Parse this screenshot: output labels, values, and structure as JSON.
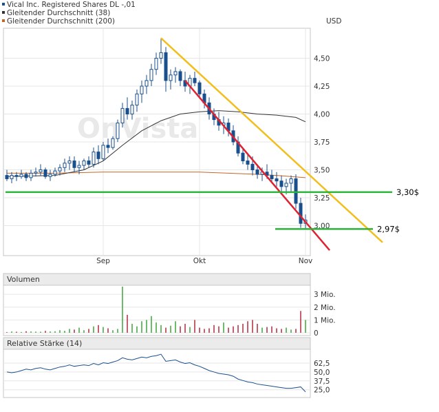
{
  "chart_data": {
    "type": "candlestick",
    "legend": [
      {
        "label": "Vical Inc. Registered Shares DL -,01",
        "color": "#1a4f8e"
      },
      {
        "label": "Gleitender Durchschnitt (38)",
        "color": "#333333"
      },
      {
        "label": "Gleitender Durchschnitt (200)",
        "color": "#c86420"
      }
    ],
    "currency": "USD",
    "watermark": "OnVista",
    "price_ticks": [
      "4,50",
      "4,25",
      "4,00",
      "3,75",
      "3,50",
      "3,25",
      "3,00"
    ],
    "price_tick_values": [
      4.5,
      4.25,
      4.0,
      3.75,
      3.5,
      3.25,
      3.0
    ],
    "ylim": [
      2.75,
      4.75
    ],
    "x_labels": [
      {
        "label": "Sep",
        "day": 20
      },
      {
        "label": "Okt",
        "day": 40
      },
      {
        "label": "Nov",
        "day": 62
      }
    ],
    "candles": [
      [
        3.45,
        3.5,
        3.4,
        3.42
      ],
      [
        3.42,
        3.48,
        3.38,
        3.45
      ],
      [
        3.45,
        3.48,
        3.4,
        3.44
      ],
      [
        3.44,
        3.5,
        3.42,
        3.46
      ],
      [
        3.46,
        3.48,
        3.4,
        3.43
      ],
      [
        3.43,
        3.5,
        3.4,
        3.47
      ],
      [
        3.47,
        3.52,
        3.44,
        3.48
      ],
      [
        3.48,
        3.55,
        3.45,
        3.5
      ],
      [
        3.5,
        3.52,
        3.42,
        3.44
      ],
      [
        3.44,
        3.5,
        3.4,
        3.46
      ],
      [
        3.46,
        3.52,
        3.44,
        3.49
      ],
      [
        3.49,
        3.55,
        3.45,
        3.52
      ],
      [
        3.52,
        3.6,
        3.48,
        3.56
      ],
      [
        3.56,
        3.62,
        3.5,
        3.58
      ],
      [
        3.58,
        3.62,
        3.48,
        3.52
      ],
      [
        3.52,
        3.58,
        3.46,
        3.54
      ],
      [
        3.54,
        3.6,
        3.5,
        3.58
      ],
      [
        3.58,
        3.62,
        3.52,
        3.55
      ],
      [
        3.55,
        3.7,
        3.52,
        3.66
      ],
      [
        3.66,
        3.72,
        3.55,
        3.6
      ],
      [
        3.6,
        3.75,
        3.58,
        3.72
      ],
      [
        3.72,
        3.78,
        3.65,
        3.7
      ],
      [
        3.7,
        3.8,
        3.68,
        3.78
      ],
      [
        3.78,
        3.95,
        3.75,
        3.92
      ],
      [
        3.92,
        4.1,
        3.88,
        4.05
      ],
      [
        4.05,
        4.15,
        3.95,
        4.0
      ],
      [
        4.0,
        4.12,
        3.95,
        4.08
      ],
      [
        4.08,
        4.22,
        4.02,
        4.18
      ],
      [
        4.18,
        4.3,
        4.1,
        4.25
      ],
      [
        4.25,
        4.35,
        4.18,
        4.3
      ],
      [
        4.3,
        4.45,
        4.25,
        4.4
      ],
      [
        4.4,
        4.55,
        4.35,
        4.5
      ],
      [
        4.5,
        4.68,
        4.45,
        4.55
      ],
      [
        4.55,
        4.6,
        4.2,
        4.3
      ],
      [
        4.3,
        4.4,
        4.22,
        4.35
      ],
      [
        4.35,
        4.42,
        4.28,
        4.38
      ],
      [
        4.38,
        4.4,
        4.25,
        4.3
      ],
      [
        4.3,
        4.38,
        4.2,
        4.25
      ],
      [
        4.25,
        4.35,
        4.18,
        4.32
      ],
      [
        4.32,
        4.38,
        4.25,
        4.28
      ],
      [
        4.28,
        4.3,
        4.15,
        4.18
      ],
      [
        4.18,
        4.22,
        4.05,
        4.1
      ],
      [
        4.1,
        4.15,
        3.95,
        4.0
      ],
      [
        4.0,
        4.05,
        3.9,
        3.95
      ],
      [
        3.95,
        4.02,
        3.85,
        3.9
      ],
      [
        3.9,
        3.98,
        3.82,
        3.92
      ],
      [
        3.92,
        3.96,
        3.8,
        3.85
      ],
      [
        3.85,
        3.9,
        3.72,
        3.75
      ],
      [
        3.75,
        3.8,
        3.62,
        3.65
      ],
      [
        3.65,
        3.7,
        3.55,
        3.58
      ],
      [
        3.58,
        3.65,
        3.5,
        3.55
      ],
      [
        3.55,
        3.62,
        3.45,
        3.5
      ],
      [
        3.5,
        3.55,
        3.42,
        3.46
      ],
      [
        3.46,
        3.52,
        3.4,
        3.48
      ],
      [
        3.48,
        3.55,
        3.42,
        3.45
      ],
      [
        3.45,
        3.5,
        3.38,
        3.42
      ],
      [
        3.42,
        3.48,
        3.35,
        3.4
      ],
      [
        3.4,
        3.45,
        3.3,
        3.35
      ],
      [
        3.35,
        3.42,
        3.28,
        3.38
      ],
      [
        3.38,
        3.45,
        3.3,
        3.42
      ],
      [
        3.42,
        3.46,
        3.15,
        3.2
      ],
      [
        3.2,
        3.25,
        2.98,
        3.02
      ],
      [
        3.02,
        3.1,
        2.97,
        3.05
      ]
    ],
    "moving_average_38": [
      [
        0,
        3.44
      ],
      [
        10,
        3.45
      ],
      [
        16,
        3.5
      ],
      [
        20,
        3.58
      ],
      [
        24,
        3.72
      ],
      [
        28,
        3.85
      ],
      [
        32,
        3.94
      ],
      [
        36,
        4.0
      ],
      [
        40,
        4.02
      ],
      [
        44,
        4.03
      ],
      [
        48,
        4.02
      ],
      [
        52,
        4.0
      ],
      [
        56,
        3.99
      ],
      [
        60,
        3.97
      ],
      [
        62,
        3.93
      ]
    ],
    "moving_average_200": [
      [
        0,
        3.47
      ],
      [
        10,
        3.47
      ],
      [
        20,
        3.48
      ],
      [
        30,
        3.48
      ],
      [
        40,
        3.48
      ],
      [
        46,
        3.47
      ],
      [
        52,
        3.46
      ],
      [
        56,
        3.45
      ],
      [
        62,
        3.43
      ]
    ],
    "trendlines": [
      {
        "color": "#f2be1c",
        "from": [
          32,
          4.68
        ],
        "to": [
          78,
          2.85
        ]
      },
      {
        "color": "#dd2230",
        "from": [
          37,
          4.3
        ],
        "to": [
          67,
          2.78
        ]
      }
    ],
    "support_levels": [
      {
        "value": 3.3,
        "label": "3,30$",
        "from": 0,
        "to": 80
      },
      {
        "value": 2.97,
        "label": "2,97$",
        "from": 56,
        "to": 76
      }
    ],
    "volume": {
      "title": "Volumen",
      "ticks": [
        "3 Mio.",
        "2 Mio.",
        "1 Mio.",
        "0"
      ],
      "tick_values": [
        3,
        2,
        1,
        0
      ],
      "ylim": [
        0,
        3.6
      ],
      "values": [
        0.05,
        0.1,
        0.08,
        0.06,
        0.12,
        0.1,
        0.09,
        0.08,
        0.15,
        0.1,
        0.12,
        0.2,
        0.15,
        0.3,
        0.25,
        0.4,
        0.2,
        0.3,
        0.5,
        0.6,
        0.45,
        0.35,
        0.2,
        0.3,
        3.6,
        1.4,
        0.7,
        0.5,
        0.9,
        1.0,
        1.3,
        0.8,
        0.6,
        0.4,
        0.55,
        0.9,
        0.5,
        0.7,
        0.45,
        1.0,
        0.4,
        0.3,
        0.35,
        0.6,
        0.5,
        0.8,
        0.4,
        0.5,
        0.6,
        0.7,
        0.9,
        1.0,
        0.7,
        0.4,
        0.45,
        0.5,
        0.35,
        0.3,
        0.4,
        0.25,
        0.3,
        1.7,
        1.0
      ],
      "up_color": "#3aa637",
      "down_color": "#b02a3c"
    },
    "rsi": {
      "title": "Relative Stärke (14)",
      "ticks": [
        "62,5",
        "50,0",
        "37,5",
        "25,0"
      ],
      "tick_values": [
        62.5,
        50,
        37.5,
        25
      ],
      "ylim": [
        15,
        80
      ],
      "values": [
        50,
        49,
        50,
        52,
        54,
        53,
        55,
        56,
        54,
        53,
        55,
        57,
        58,
        60,
        58,
        59,
        60,
        59,
        62,
        60,
        63,
        62,
        64,
        66,
        70,
        68,
        67,
        69,
        71,
        70,
        72,
        73,
        75,
        65,
        66,
        67,
        64,
        62,
        63,
        60,
        58,
        55,
        52,
        50,
        48,
        47,
        46,
        44,
        40,
        38,
        36,
        35,
        33,
        32,
        31,
        30,
        29,
        28,
        27,
        27,
        28,
        29,
        22
      ]
    }
  }
}
